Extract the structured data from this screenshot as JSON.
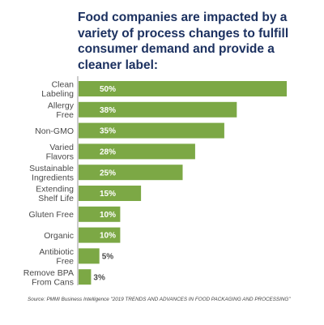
{
  "chart_data": {
    "type": "bar",
    "orientation": "horizontal",
    "title": "Food companies are impacted by a variety of process changes to fulfill consumer demand and provide a cleaner label:",
    "categories": [
      "Clean\nLabeling",
      "Allergy\nFree",
      "Non-GMO",
      "Varied\nFlavors",
      "Sustainable\nIngredients",
      "Extending\nShelf Life",
      "Gluten Free",
      "Organic",
      "Antibiotic\nFree",
      "Remove BPA\nFrom Cans"
    ],
    "values": [
      50,
      38,
      35,
      28,
      25,
      15,
      10,
      10,
      5,
      3
    ],
    "value_labels": [
      "50%",
      "38%",
      "35%",
      "28%",
      "25%",
      "15%",
      "10%",
      "10%",
      "5%",
      "3%"
    ],
    "xlim": [
      0,
      50
    ],
    "grid": false,
    "legend": "none",
    "bar_color": "#7ca845",
    "source": "Source: PMMI Business Intelligence \"2019 TRENDS AND ADVANCES IN FOOD PACKAGING AND PROCESSING\""
  },
  "colors": {
    "title": "#1c3160",
    "bar": "#7ca845",
    "label_inside": "#ffffff",
    "label_outside": "#4a4a4a",
    "axis": "#888888"
  }
}
